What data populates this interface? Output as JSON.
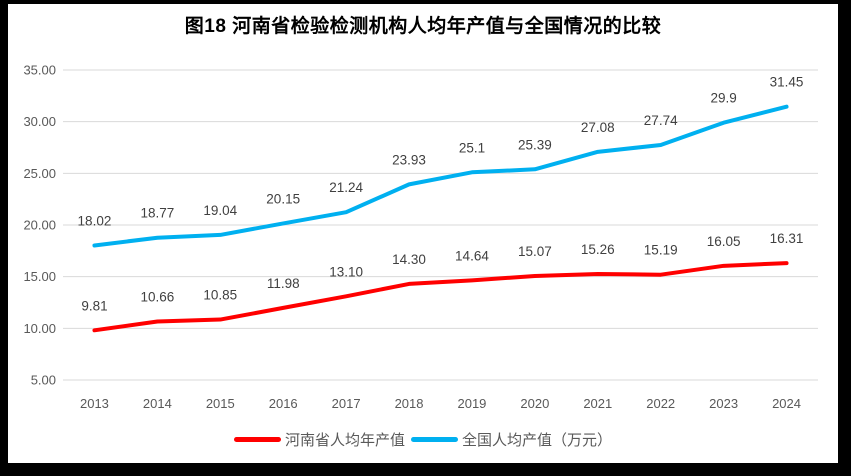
{
  "figure": {
    "frame_color": "#000000",
    "background_color": "#FFFFFF"
  },
  "chart_data": {
    "type": "line",
    "title": "图18  河南省检验检测机构人均年产值与全国情况的比较",
    "categories": [
      "2013",
      "2014",
      "2015",
      "2016",
      "2017",
      "2018",
      "2019",
      "2020",
      "2021",
      "2022",
      "2023",
      "2024"
    ],
    "series": [
      {
        "name": "河南省人均年产值",
        "color": "#FF0000",
        "values": [
          9.81,
          10.66,
          10.85,
          11.98,
          13.1,
          14.3,
          14.64,
          15.07,
          15.26,
          15.19,
          16.05,
          16.31
        ],
        "labels": [
          "9.81",
          "10.66",
          "10.85",
          "11.98",
          "13.10",
          "14.30",
          "14.64",
          "15.07",
          "15.26",
          "15.19",
          "16.05",
          "16.31"
        ]
      },
      {
        "name": "全国人均产值（万元）",
        "color": "#00B0F0",
        "values": [
          18.02,
          18.77,
          19.04,
          20.15,
          21.24,
          23.93,
          25.1,
          25.39,
          27.08,
          27.74,
          29.9,
          31.45
        ],
        "labels": [
          "18.02",
          "18.77",
          "19.04",
          "20.15",
          "21.24",
          "23.93",
          "25.1",
          "25.39",
          "27.08",
          "27.74",
          "29.9",
          "31.45"
        ]
      }
    ],
    "xlabel": "",
    "ylabel": "",
    "ylim": [
      5,
      35
    ],
    "ytick_step": 5,
    "ytick_labels": [
      "5.00",
      "10.00",
      "15.00",
      "20.00",
      "25.00",
      "30.00",
      "35.00"
    ],
    "grid": true,
    "grid_color": "#D9D9D9",
    "axis_text_color": "#595959",
    "data_label_color": "#404040",
    "legend_position": "bottom"
  }
}
